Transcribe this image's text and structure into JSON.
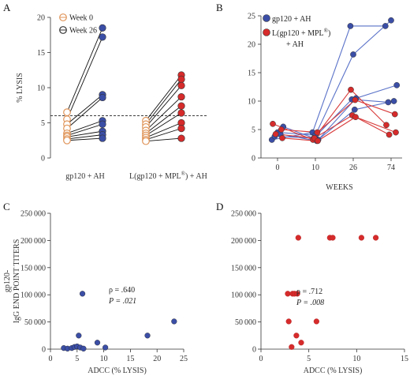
{
  "chart_data": [
    {
      "panel": "A",
      "type": "scatter",
      "ylabel": "% LYSIS",
      "ylim": [
        0,
        20
      ],
      "yticks": [
        0,
        5,
        10,
        15,
        20
      ],
      "categories": [
        "gp120 + AH",
        "L(gp120 + MPL®) + AH"
      ],
      "legend": [
        "Week 0",
        "Week 26"
      ],
      "threshold": 6,
      "series": [
        {
          "name": "Week 0",
          "values": [
            [
              6.5,
              5.5,
              4.8,
              4.2,
              3.5,
              3.2,
              3.0,
              2.7,
              2.5
            ],
            [
              5.3,
              4.8,
              4.4,
              3.9,
              3.5,
              3.2,
              2.9,
              2.6,
              2.4
            ]
          ]
        },
        {
          "name": "Week 26",
          "values": [
            [
              18.5,
              17.2,
              9.0,
              8.6,
              5.3,
              4.8,
              3.8,
              3.3,
              2.8
            ],
            [
              11.8,
              11.2,
              10.3,
              8.7,
              7.4,
              6.4,
              5.0,
              4.2,
              2.8
            ]
          ]
        }
      ]
    },
    {
      "panel": "B",
      "type": "line",
      "xlabel": "WEEKS",
      "ylabel": "",
      "ylim": [
        0,
        25
      ],
      "yticks": [
        0,
        5,
        10,
        15,
        20,
        25
      ],
      "xticks": [
        0,
        10,
        26,
        74
      ],
      "legend": [
        "gp120 + AH",
        "L(gp120 + MPL®) + AH"
      ],
      "series": [
        {
          "group": "gp120 + AH",
          "x": [
            0,
            10,
            26,
            74
          ],
          "values": [
            3.2,
            4.5,
            23.2,
            23.2
          ]
        },
        {
          "group": "gp120 + AH",
          "x": [
            0,
            10,
            26,
            74
          ],
          "values": [
            4.5,
            4.0,
            18.2,
            24.2
          ]
        },
        {
          "group": "gp120 + AH",
          "x": [
            0,
            10,
            26,
            74
          ],
          "values": [
            5.5,
            3.2,
            10.5,
            12.8
          ]
        },
        {
          "group": "gp120 + AH",
          "x": [
            0,
            10,
            26,
            74
          ],
          "values": [
            3.8,
            3.5,
            10.3,
            9.8
          ]
        },
        {
          "group": "gp120 + AH",
          "x": [
            0,
            10,
            26,
            74
          ],
          "values": [
            4.2,
            3.0,
            8.5,
            10.0
          ]
        },
        {
          "group": "L(gp120 + MPL®) + AH",
          "x": [
            0,
            10,
            26,
            74
          ],
          "values": [
            6.0,
            3.2,
            12.0,
            5.8
          ]
        },
        {
          "group": "L(gp120 + MPL®) + AH",
          "x": [
            0,
            10,
            26,
            74
          ],
          "values": [
            5.0,
            4.5,
            10.2,
            7.7
          ]
        },
        {
          "group": "L(gp120 + MPL®) + AH",
          "x": [
            0,
            10,
            26,
            74
          ],
          "values": [
            4.2,
            3.5,
            7.5,
            4.1
          ]
        },
        {
          "group": "L(gp120 + MPL®) + AH",
          "x": [
            0,
            10,
            26,
            74
          ],
          "values": [
            3.5,
            3.0,
            7.2,
            4.5
          ]
        }
      ]
    },
    {
      "panel": "C",
      "type": "scatter",
      "xlabel": "ADCC (% LYSIS)",
      "ylabel": "gp120-IgG END POINT TITERS",
      "xlim": [
        0,
        25
      ],
      "ylim": [
        0,
        250000
      ],
      "xticks": [
        0,
        5,
        10,
        15,
        20,
        25
      ],
      "yticks": [
        0,
        50000,
        100000,
        150000,
        200000,
        250000
      ],
      "stats": {
        "rho": "ρ = .640",
        "p": "P = .021"
      },
      "points": [
        [
          2.5,
          2000
        ],
        [
          3.2,
          1000
        ],
        [
          4.0,
          2000
        ],
        [
          4.5,
          4000
        ],
        [
          5.0,
          5000
        ],
        [
          5.3,
          25000
        ],
        [
          5.6,
          3000
        ],
        [
          6.0,
          102000
        ],
        [
          6.2,
          1000
        ],
        [
          8.8,
          12000
        ],
        [
          10.3,
          3000
        ],
        [
          18.2,
          25000
        ],
        [
          23.2,
          51000
        ]
      ]
    },
    {
      "panel": "D",
      "type": "scatter",
      "xlabel": "ADCC (% LYSIS)",
      "ylabel": "",
      "xlim": [
        0,
        15
      ],
      "ylim": [
        0,
        250000
      ],
      "xticks": [
        0,
        5,
        10,
        15
      ],
      "yticks": [
        0,
        50000,
        100000,
        150000,
        200000,
        250000
      ],
      "stats": {
        "rho": "ρ = .712",
        "p": "P = .008"
      },
      "points": [
        [
          2.8,
          102000
        ],
        [
          2.9,
          51000
        ],
        [
          3.2,
          4000
        ],
        [
          3.3,
          102000
        ],
        [
          3.5,
          102000
        ],
        [
          3.7,
          25000
        ],
        [
          3.8,
          102000
        ],
        [
          3.9,
          205000
        ],
        [
          4.2,
          12000
        ],
        [
          5.8,
          51000
        ],
        [
          7.2,
          205000
        ],
        [
          7.5,
          205000
        ],
        [
          10.5,
          205000
        ],
        [
          12.0,
          205000
        ]
      ]
    }
  ],
  "labels": {
    "panel_a": "A",
    "panel_b": "B",
    "panel_c": "C",
    "panel_d": "D",
    "registered": "®",
    "legend_b_2_line1": "L(gp120 + MPL",
    "legend_b_2_line1_end": ")",
    "legend_b_2_line2": "+ AH",
    "cat_b_line_prefix": "L(gp120 + MPL",
    "cat_b_line_suffix": ") + AH",
    "ylabel_c_line1": "gp120-",
    "ylabel_c_line2": "IgG END POINT TITERS"
  },
  "colors": {
    "blue": "#3b4ea6",
    "red": "#d62b2b",
    "orange_ring": "#e0955a",
    "dark": "#333333",
    "blue_line": "#5a72c8",
    "red_line": "#d93a3a"
  }
}
